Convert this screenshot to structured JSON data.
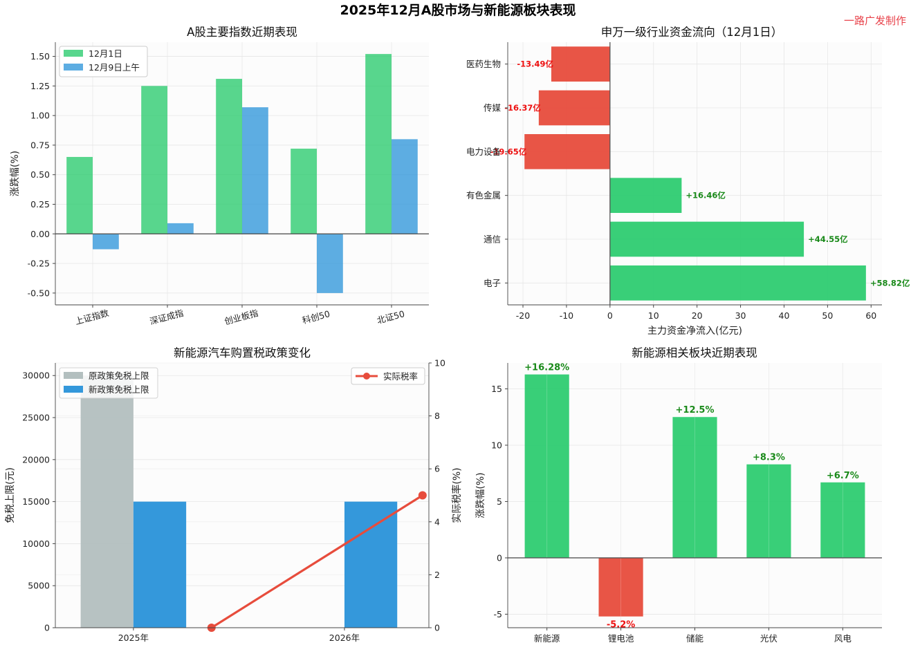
{
  "figure": {
    "title": "2025年12月A股市场与新能源板块表现",
    "watermark": "一路广发制作"
  },
  "colors": {
    "green": "#2ecc71",
    "blue": "#3498db",
    "red": "#e74c3c",
    "gray": "#b3bfbf",
    "pos_label": "#1a8a1a",
    "neg_label": "#ee1111"
  },
  "chart_data": [
    {
      "type": "bar",
      "title": "A股主要指数近期表现",
      "xlabel": "",
      "ylabel": "涨跌幅(%)",
      "categories": [
        "上证指数",
        "深证成指",
        "创业板指",
        "科创50",
        "北证50"
      ],
      "series": [
        {
          "name": "12月1日",
          "values": [
            0.65,
            1.25,
            1.31,
            0.72,
            1.52
          ]
        },
        {
          "name": "12月9日上午",
          "values": [
            -0.13,
            0.09,
            1.07,
            -0.5,
            0.8
          ]
        }
      ],
      "ylim": [
        -0.6,
        1.62
      ],
      "yticks": [
        -0.5,
        -0.25,
        0.0,
        0.25,
        0.5,
        0.75,
        1.0,
        1.25,
        1.5
      ],
      "ytick_labels": [
        "-0.50",
        "-0.25",
        "0.00",
        "0.25",
        "0.50",
        "0.75",
        "1.00",
        "1.25",
        "1.50"
      ],
      "grid": true,
      "legend": "top-left"
    },
    {
      "type": "bar",
      "orientation": "horizontal",
      "title": "申万一级行业资金流向（12月1日）",
      "xlabel": "主力资金净流入(亿元)",
      "ylabel": "",
      "categories": [
        "电子",
        "通信",
        "有色金属",
        "电力设备",
        "传媒",
        "医药生物"
      ],
      "values": [
        58.82,
        44.55,
        16.46,
        -19.65,
        -16.37,
        -13.49
      ],
      "labels": [
        "+58.82亿",
        "+44.55亿",
        "+16.46亿",
        "-19.65亿",
        "-16.37亿",
        "-13.49亿"
      ],
      "xlim": [
        -23.5,
        62.5
      ],
      "xticks": [
        -20,
        -10,
        0,
        10,
        20,
        30,
        40,
        50,
        60
      ],
      "xtick_labels": [
        "-20",
        "-10",
        "0",
        "10",
        "20",
        "30",
        "40",
        "50",
        "60"
      ],
      "grid": true
    },
    {
      "type": "bar",
      "title": "新能源汽车购置税政策变化",
      "xlabel": "",
      "ylabel": "免税上限(元)",
      "y2label": "实际税率(%)",
      "categories": [
        "2025年",
        "2026年"
      ],
      "series": [
        {
          "name": "原政策免税上限",
          "values": [
            30000,
            0
          ]
        },
        {
          "name": "新政策免税上限",
          "values": [
            15000,
            15000
          ]
        }
      ],
      "line_series": {
        "name": "实际税率",
        "values": [
          0,
          5
        ],
        "axis": "right"
      },
      "ylim": [
        0,
        31500
      ],
      "yticks": [
        0,
        5000,
        10000,
        15000,
        20000,
        25000,
        30000
      ],
      "ytick_labels": [
        "0",
        "5000",
        "10000",
        "15000",
        "20000",
        "25000",
        "30000"
      ],
      "y2lim": [
        0,
        10
      ],
      "y2ticks": [
        0,
        2,
        4,
        6,
        8,
        10
      ],
      "y2tick_labels": [
        "0",
        "2",
        "4",
        "6",
        "8",
        "10"
      ],
      "grid": true,
      "legend": "top-left and top-right"
    },
    {
      "type": "bar",
      "title": "新能源相关板块近期表现",
      "xlabel": "",
      "ylabel": "涨跌幅(%)",
      "categories": [
        "新能源",
        "锂电池",
        "储能",
        "光伏",
        "风电"
      ],
      "values": [
        16.28,
        -5.2,
        12.5,
        8.3,
        6.7
      ],
      "labels": [
        "+16.28%",
        "-5.2%",
        "+12.5%",
        "+8.3%",
        "+6.7%"
      ],
      "ylim": [
        -6.2,
        17.3
      ],
      "yticks": [
        -5,
        0,
        5,
        10,
        15
      ],
      "ytick_labels": [
        "-5",
        "0",
        "5",
        "10",
        "15"
      ],
      "grid": true
    }
  ]
}
